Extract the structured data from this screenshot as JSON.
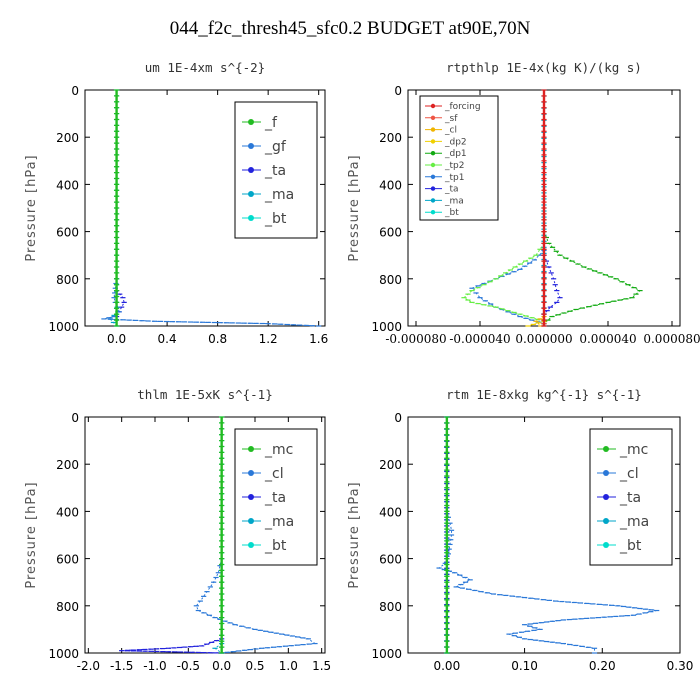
{
  "figure": {
    "title": "044_f2c_thresh45_sfc0.2  BUDGET at90E,70N"
  },
  "colors": {
    "_f": "#22bb22",
    "_gf": "#2a78d8",
    "_ta": "#2222dd",
    "_ma": "#00a6c8",
    "_bt": "#00dccc",
    "_mc": "#22bb22",
    "_cl": "#2a78d8",
    "forcing": "#dd2222",
    "_sf": "#ee5544",
    "_cl_s": "#f0b400",
    "_dp2": "#f0d000",
    "_dp1": "#11aa11",
    "_tp2": "#66ee44",
    "_tp1": "#2a78d8"
  },
  "chart_data": [
    {
      "type": "line",
      "title": "um   1E-4xm s^{-2}",
      "xlabel": "",
      "ylabel": "Pressure [hPa]",
      "xlim": [
        -0.25,
        1.65
      ],
      "ylim": [
        1000,
        0
      ],
      "xticks": [
        0,
        0.4,
        0.8,
        1.2,
        1.6
      ],
      "xtick_labels": [
        "0.0",
        "0.4",
        "0.8",
        "1.2",
        "1.6"
      ],
      "yticks": [
        0,
        200,
        400,
        600,
        800,
        1000
      ],
      "ytick_labels": [
        "0",
        "200",
        "400",
        "600",
        "800",
        "1000"
      ],
      "legend_position": "top-right",
      "legend_font": "large",
      "series": [
        {
          "name": "_f",
          "color": "_f",
          "y": [
            0,
            500,
            1000
          ],
          "x": [
            0,
            0,
            0
          ]
        },
        {
          "name": "_gf",
          "color": "_gf",
          "y": [
            800,
            840,
            880,
            900,
            920,
            940,
            960,
            970,
            980,
            990,
            1000
          ],
          "x": [
            0,
            -0.01,
            -0.02,
            -0.01,
            0.01,
            0.02,
            -0.02,
            -0.1,
            0.3,
            1.2,
            1.6
          ]
        },
        {
          "name": "_ta",
          "color": "_ta",
          "y": [
            850,
            880,
            900,
            920,
            940,
            960
          ],
          "x": [
            0,
            0.05,
            0.06,
            0.04,
            0.02,
            0
          ]
        },
        {
          "name": "_ma",
          "color": "_ma",
          "y": [
            900,
            940,
            970,
            1000
          ],
          "x": [
            0,
            0.01,
            -0.05,
            0
          ]
        },
        {
          "name": "_bt",
          "color": "_bt",
          "y": [
            0,
            400,
            800,
            1000
          ],
          "x": [
            0,
            0,
            0,
            0
          ]
        }
      ]
    },
    {
      "type": "line",
      "title": "rtpthlp   1E-4x(kg K)/(kg s)",
      "xlabel": "",
      "ylabel": "Pressure [hPa]",
      "xlim": [
        -8.5e-05,
        8.5e-05
      ],
      "ylim": [
        1000,
        0
      ],
      "xticks": [
        -8e-05,
        -4e-05,
        0,
        4e-05,
        8e-05
      ],
      "xtick_labels": [
        "-0.000080",
        "-0.000040",
        "0.000000",
        "0.000040",
        "0.000080"
      ],
      "yticks": [
        0,
        200,
        400,
        600,
        800,
        1000
      ],
      "ytick_labels": [
        "0",
        "200",
        "400",
        "600",
        "800",
        "1000"
      ],
      "legend_position": "top-left",
      "legend_font": "small",
      "series": [
        {
          "name": "_forcing",
          "color": "forcing",
          "y": [
            0,
            500,
            1000
          ],
          "x": [
            0,
            0,
            0
          ]
        },
        {
          "name": "_sf",
          "color": "_sf",
          "y": [
            990,
            1000
          ],
          "x": [
            0,
            0
          ]
        },
        {
          "name": "_cl",
          "color": "_cl_s",
          "y": [
            960,
            980,
            1000
          ],
          "x": [
            0,
            -5e-06,
            -2e-06
          ]
        },
        {
          "name": "_dp2",
          "color": "_dp2",
          "y": [
            980,
            1000
          ],
          "x": [
            0,
            -1e-05
          ]
        },
        {
          "name": "_dp1",
          "color": "_dp1",
          "y": [
            600,
            650,
            700,
            750,
            800,
            850,
            880,
            900,
            930,
            960,
            990
          ],
          "x": [
            0,
            3e-06,
            1e-05,
            2.5e-05,
            4.5e-05,
            6e-05,
            5.5e-05,
            4e-05,
            2e-05,
            5e-06,
            0
          ]
        },
        {
          "name": "_tp2",
          "color": "_tp2",
          "y": [
            650,
            700,
            750,
            800,
            850,
            880,
            900,
            920,
            950,
            980
          ],
          "x": [
            0,
            -5e-06,
            -1.8e-05,
            -3e-05,
            -4.5e-05,
            -5e-05,
            -4.5e-05,
            -3e-05,
            -1.5e-05,
            0
          ]
        },
        {
          "name": "_tp1",
          "color": "_tp1",
          "y": [
            680,
            720,
            760,
            800,
            840,
            880,
            920,
            960,
            990
          ],
          "x": [
            0,
            -6e-06,
            -1.5e-05,
            -3e-05,
            -4.5e-05,
            -4e-05,
            -3e-05,
            -1.5e-05,
            0
          ]
        },
        {
          "name": "_ta",
          "color": "_ta",
          "y": [
            700,
            750,
            800,
            850,
            880,
            900,
            920,
            950,
            980
          ],
          "x": [
            0,
            3e-06,
            6e-06,
            8e-06,
            1e-05,
            8e-06,
            4e-06,
            0,
            0
          ]
        },
        {
          "name": "_ma",
          "color": "_ma",
          "y": [
            0,
            1000
          ],
          "x": [
            0,
            0
          ]
        },
        {
          "name": "_bt",
          "color": "_bt",
          "y": [
            500,
            600,
            700,
            800,
            900
          ],
          "x": [
            0,
            0,
            0,
            0,
            0
          ]
        }
      ]
    },
    {
      "type": "line",
      "title": "thlm   1E-5xK s^{-1}",
      "xlabel": "",
      "ylabel": "Pressure [hPa]",
      "xlim": [
        -2.05,
        1.55
      ],
      "ylim": [
        1000,
        0
      ],
      "xticks": [
        -2.0,
        -1.5,
        -1.0,
        -0.5,
        0.0,
        0.5,
        1.0,
        1.5
      ],
      "xtick_labels": [
        "-2.0",
        "-1.5",
        "-1.0",
        "-0.5",
        "0.0",
        "0.5",
        "1.0",
        "1.5"
      ],
      "yticks": [
        0,
        200,
        400,
        600,
        800,
        1000
      ],
      "ytick_labels": [
        "0",
        "200",
        "400",
        "600",
        "800",
        "1000"
      ],
      "legend_position": "top-right",
      "legend_font": "large",
      "series": [
        {
          "name": "_mc",
          "color": "_mc",
          "y": [
            0,
            500,
            1000
          ],
          "x": [
            0,
            0,
            0
          ]
        },
        {
          "name": "_cl",
          "color": "_cl",
          "y": [
            600,
            660,
            700,
            740,
            780,
            800,
            820,
            850,
            880,
            900,
            920,
            940,
            960,
            980,
            1000
          ],
          "x": [
            0,
            -0.05,
            -0.12,
            -0.22,
            -0.32,
            -0.38,
            -0.35,
            -0.1,
            0.2,
            0.5,
            0.9,
            1.3,
            1.4,
            0.6,
            0
          ]
        },
        {
          "name": "_ta",
          "color": "_ta",
          "y": [
            940,
            970,
            980,
            990,
            1000
          ],
          "x": [
            0,
            -0.3,
            -0.8,
            -1.5,
            0
          ]
        },
        {
          "name": "_ma",
          "color": "_ma",
          "y": [
            960,
            980,
            1000
          ],
          "x": [
            0,
            -0.1,
            0
          ]
        },
        {
          "name": "_bt",
          "color": "_bt",
          "y": [
            0,
            400,
            800,
            1000
          ],
          "x": [
            0,
            0,
            0,
            0
          ]
        }
      ]
    },
    {
      "type": "line",
      "title": "rtm   1E-8xkg kg^{-1} s^{-1}",
      "xlabel": "",
      "ylabel": "Pressure [hPa]",
      "xlim": [
        -0.05,
        0.3
      ],
      "ylim": [
        1000,
        0
      ],
      "xticks": [
        0,
        0.1,
        0.2,
        0.3
      ],
      "xtick_labels": [
        "0.00",
        "0.10",
        "0.20",
        "0.30"
      ],
      "yticks": [
        0,
        200,
        400,
        600,
        800,
        1000
      ],
      "ytick_labels": [
        "0",
        "200",
        "400",
        "600",
        "800",
        "1000"
      ],
      "legend_position": "top-right",
      "legend_font": "large",
      "series": [
        {
          "name": "_mc",
          "color": "_mc",
          "y": [
            0,
            500,
            1000
          ],
          "x": [
            0,
            0,
            0
          ]
        },
        {
          "name": "_cl",
          "color": "_cl",
          "y": [
            400,
            450,
            480,
            500,
            540,
            580,
            620,
            640,
            660,
            690,
            720,
            750,
            780,
            800,
            820,
            840,
            860,
            880,
            900,
            920,
            940,
            960,
            980,
            1000
          ],
          "x": [
            0,
            0.004,
            0.006,
            0.006,
            0.004,
            0.002,
            -0.002,
            -0.01,
            0.01,
            0.03,
            0.012,
            0.06,
            0.14,
            0.22,
            0.27,
            0.24,
            0.15,
            0.1,
            0.12,
            0.08,
            0.1,
            0.15,
            0.19,
            0.19
          ]
        },
        {
          "name": "_ta",
          "color": "_ta",
          "y": [
            0,
            1000
          ],
          "x": [
            0,
            0
          ]
        },
        {
          "name": "_ma",
          "color": "_ma",
          "y": [
            0,
            1000
          ],
          "x": [
            0,
            0
          ]
        },
        {
          "name": "_bt",
          "color": "_bt",
          "y": [
            0,
            400,
            800,
            1000
          ],
          "x": [
            0,
            0,
            0,
            0
          ]
        }
      ]
    }
  ]
}
